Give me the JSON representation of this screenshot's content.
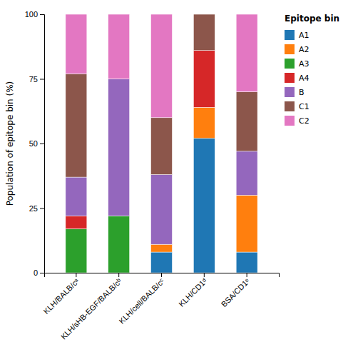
{
  "chart_data": {
    "type": "bar",
    "stacked": true,
    "ylabel": "Population of epitope bin (%)",
    "legend_title": "Epitope bin",
    "legend": "right",
    "grid": false,
    "categories": [
      "KLH/BALB/cᵃ",
      "KLH/sHB-EGF/BALB/cᵇ",
      "KLH/cell/BALB/cᶜ",
      "KLH/CD1ᵈ",
      "BSA/CD1ᵉ"
    ],
    "series": [
      {
        "name": "A1",
        "values": [
          0,
          0,
          8,
          52,
          8
        ]
      },
      {
        "name": "A2",
        "values": [
          0,
          0,
          3,
          12,
          22
        ]
      },
      {
        "name": "A3",
        "values": [
          17,
          22,
          0,
          0,
          0
        ]
      },
      {
        "name": "A4",
        "values": [
          5,
          0,
          0,
          22,
          0
        ]
      },
      {
        "name": "B",
        "values": [
          15,
          53,
          27,
          0,
          17
        ]
      },
      {
        "name": "C1",
        "values": [
          40,
          0,
          22,
          14,
          23
        ]
      },
      {
        "name": "C2",
        "values": [
          23,
          25,
          40,
          0,
          30
        ]
      }
    ],
    "ylim": [
      0,
      100
    ],
    "yticks": [
      0,
      25,
      50,
      75,
      100
    ]
  }
}
